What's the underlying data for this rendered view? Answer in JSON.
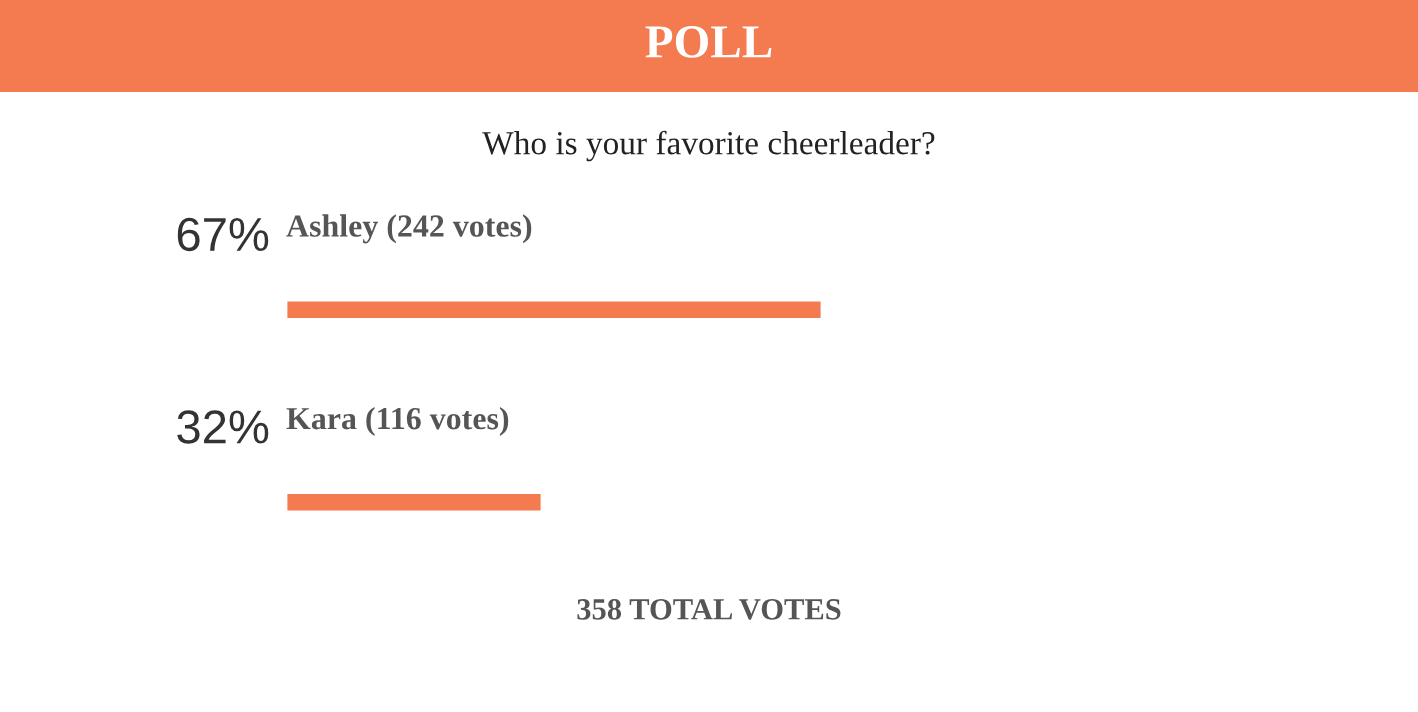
{
  "chart_data": {
    "type": "bar",
    "orientation": "horizontal",
    "title": "POLL",
    "subtitle": "Who is your favorite cheerleader?",
    "categories": [
      "Ashley (242 votes)",
      "Kara (116 votes)"
    ],
    "values": [
      67,
      32
    ],
    "value_labels": [
      "67%",
      "32%"
    ],
    "color": "#f47a50",
    "tick_labels": false,
    "annotations": [
      "358 TOTAL VOTES"
    ]
  }
}
